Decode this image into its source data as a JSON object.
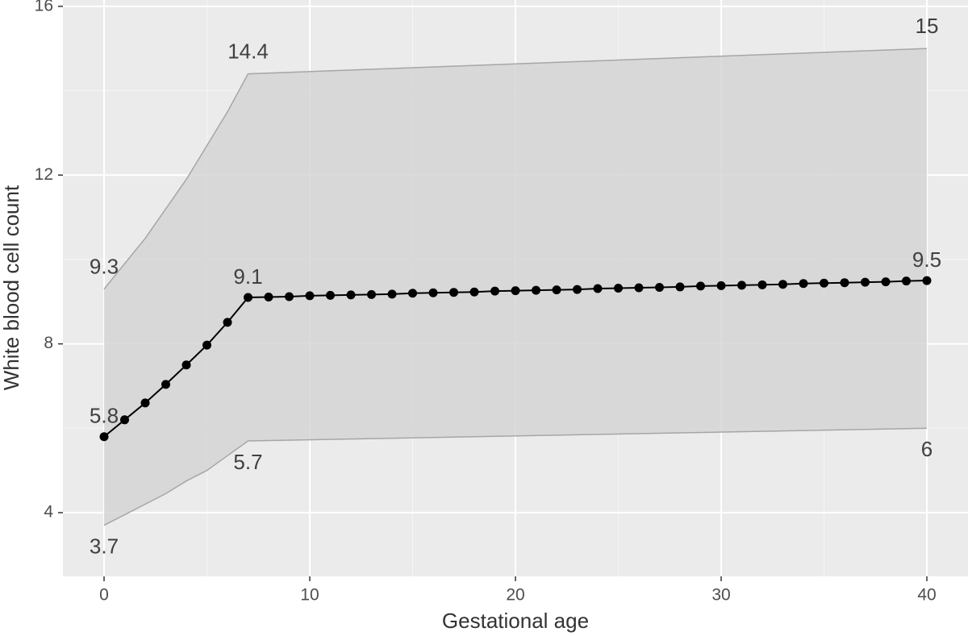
{
  "chart_data": {
    "type": "line",
    "x_label": "Gestational age",
    "y_label": "White blood cell count",
    "xlim": [
      -2,
      42
    ],
    "ylim": [
      2.49,
      16.15
    ],
    "xticks": [
      0,
      10,
      20,
      30,
      40
    ],
    "yticks": [
      4,
      8,
      12,
      16
    ],
    "x_minor_grid": [
      5,
      15,
      25,
      35
    ],
    "y_minor_grid": [
      6,
      10,
      14
    ],
    "grid": true,
    "band": {
      "color": "#d3d3d3",
      "edge_color": "#a6a6a6",
      "x": [
        0,
        1,
        2,
        3,
        4,
        5,
        6,
        7,
        40
      ],
      "lower": [
        3.7,
        3.95,
        4.2,
        4.45,
        4.75,
        5.0,
        5.35,
        5.7,
        6
      ],
      "upper": [
        9.3,
        9.9,
        10.5,
        11.2,
        11.9,
        12.7,
        13.5,
        14.4,
        15
      ]
    },
    "x": [
      0,
      1,
      2,
      3,
      4,
      5,
      6,
      7,
      8,
      9,
      10,
      11,
      12,
      13,
      14,
      15,
      16,
      17,
      18,
      19,
      20,
      21,
      22,
      23,
      24,
      25,
      26,
      27,
      28,
      29,
      30,
      31,
      32,
      33,
      34,
      35,
      36,
      37,
      38,
      39,
      40
    ],
    "series": [
      {
        "color": "#000000",
        "values": [
          5.8,
          6.2,
          6.6,
          7.04,
          7.5,
          7.97,
          8.51,
          9.1,
          9.11,
          9.12,
          9.14,
          9.15,
          9.16,
          9.17,
          9.18,
          9.2,
          9.21,
          9.22,
          9.23,
          9.25,
          9.26,
          9.27,
          9.28,
          9.29,
          9.31,
          9.32,
          9.33,
          9.34,
          9.35,
          9.37,
          9.38,
          9.39,
          9.4,
          9.41,
          9.43,
          9.44,
          9.45,
          9.46,
          9.47,
          9.49,
          9.5
        ]
      }
    ]
  }
}
